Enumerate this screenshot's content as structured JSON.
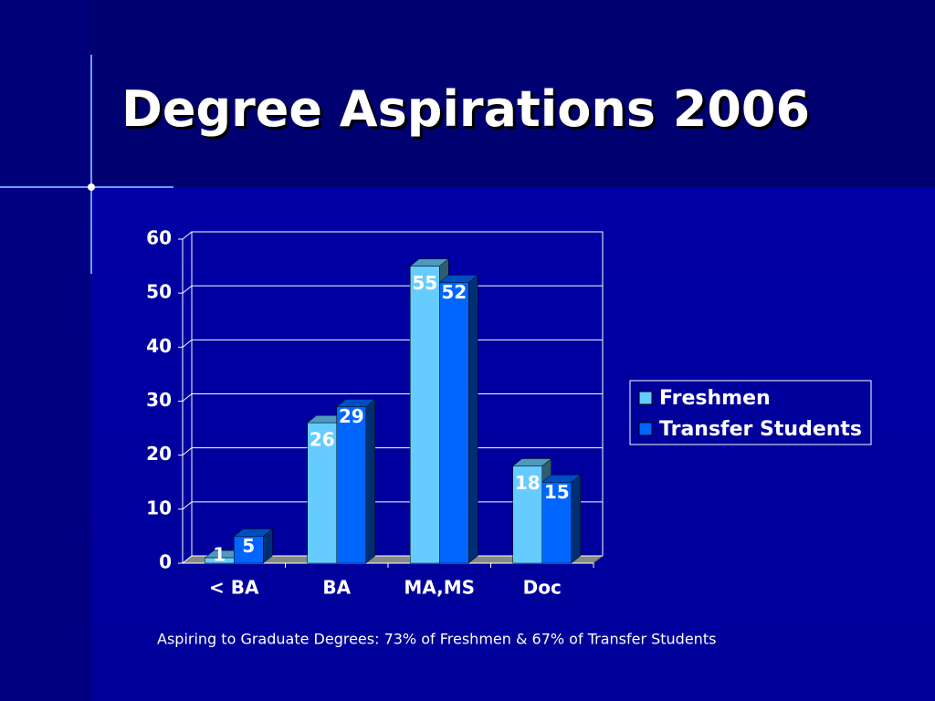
{
  "chart_data": {
    "type": "bar",
    "title": "Degree Aspirations 2006",
    "categories": [
      "< BA",
      "BA",
      "MA,MS",
      "Doc"
    ],
    "series": [
      {
        "name": "Freshmen",
        "color": "#66ccff",
        "values": [
          1,
          26,
          55,
          18
        ]
      },
      {
        "name": "Transfer Students",
        "color": "#0066ff",
        "values": [
          5,
          29,
          52,
          15
        ]
      }
    ],
    "ylim": [
      0,
      60
    ],
    "yticks": [
      0,
      10,
      20,
      30,
      40,
      50,
      60
    ],
    "grid": true,
    "legend": "right",
    "annotation": "Aspiring to Graduate Degrees: 73% of Freshmen & 67% of Transfer Students"
  }
}
